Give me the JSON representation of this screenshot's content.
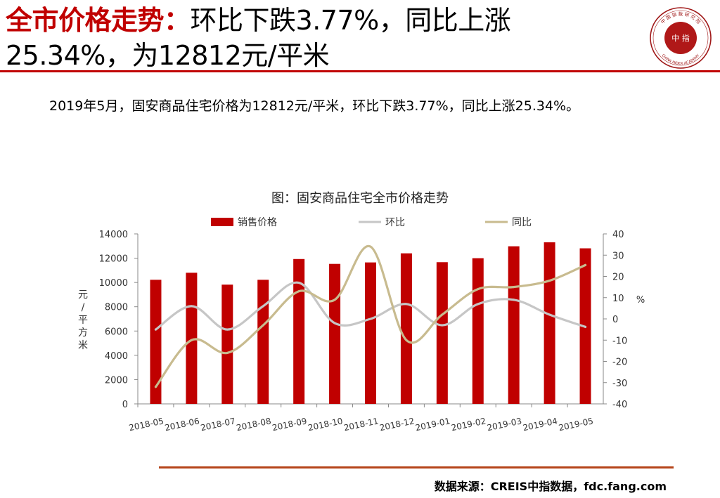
{
  "header": {
    "title_highlight": "全市价格走势：",
    "title_line1": "环比下跌3.77%，同比上涨",
    "title_line2": "25.34%，为12812元/平米"
  },
  "summary_text": "2019年5月，固安商品住宅价格为12812元/平米，环比下跌3.77%，同比上涨25.34%。",
  "source_text": "数据来源：CREIS中指数据，fdc.fang.com",
  "colors": {
    "accent": "#c00000",
    "bar": "#c00000",
    "mom": "#c6c6c6",
    "yoy": "#c8bb8f",
    "footer_rule": "#b5451a"
  },
  "logo": {
    "center_text": "中 指",
    "top_text": "中 国 指 数 研 究 院",
    "bottom_text": "CHINA INDEX ACADEMY"
  },
  "chart_data": {
    "type": "bar",
    "title": "图：固安商品住宅全市价格走势",
    "categories": [
      "2018-05",
      "2018-06",
      "2018-07",
      "2018-08",
      "2018-09",
      "2018-10",
      "2018-11",
      "2018-12",
      "2019-01",
      "2019-02",
      "2019-03",
      "2019-04",
      "2019-05"
    ],
    "series": [
      {
        "name": "销售价格",
        "type": "bar",
        "axis": "left",
        "values": [
          10220,
          10800,
          9820,
          10220,
          11930,
          11530,
          11650,
          12400,
          11670,
          12000,
          12980,
          13310,
          12812
        ]
      },
      {
        "name": "环比",
        "type": "line",
        "axis": "right",
        "values": [
          -5,
          6,
          -5,
          6,
          17,
          -2,
          0,
          7,
          -3,
          7,
          9,
          2,
          -3.77
        ]
      },
      {
        "name": "同比",
        "type": "line",
        "axis": "right",
        "values": [
          -32,
          -10,
          -16,
          -3,
          13,
          9,
          34,
          -10,
          2,
          14,
          15,
          18,
          25.34
        ]
      }
    ],
    "y_left": {
      "label": "元/平方米",
      "min": 0,
      "max": 14000,
      "ticks": [
        0,
        2000,
        4000,
        6000,
        8000,
        10000,
        12000,
        14000
      ]
    },
    "y_right": {
      "label": "%",
      "min": -40,
      "max": 40,
      "ticks": [
        -40,
        -30,
        -20,
        -10,
        0,
        10,
        20,
        30,
        40
      ]
    },
    "grid": false,
    "legend_position": "top"
  }
}
